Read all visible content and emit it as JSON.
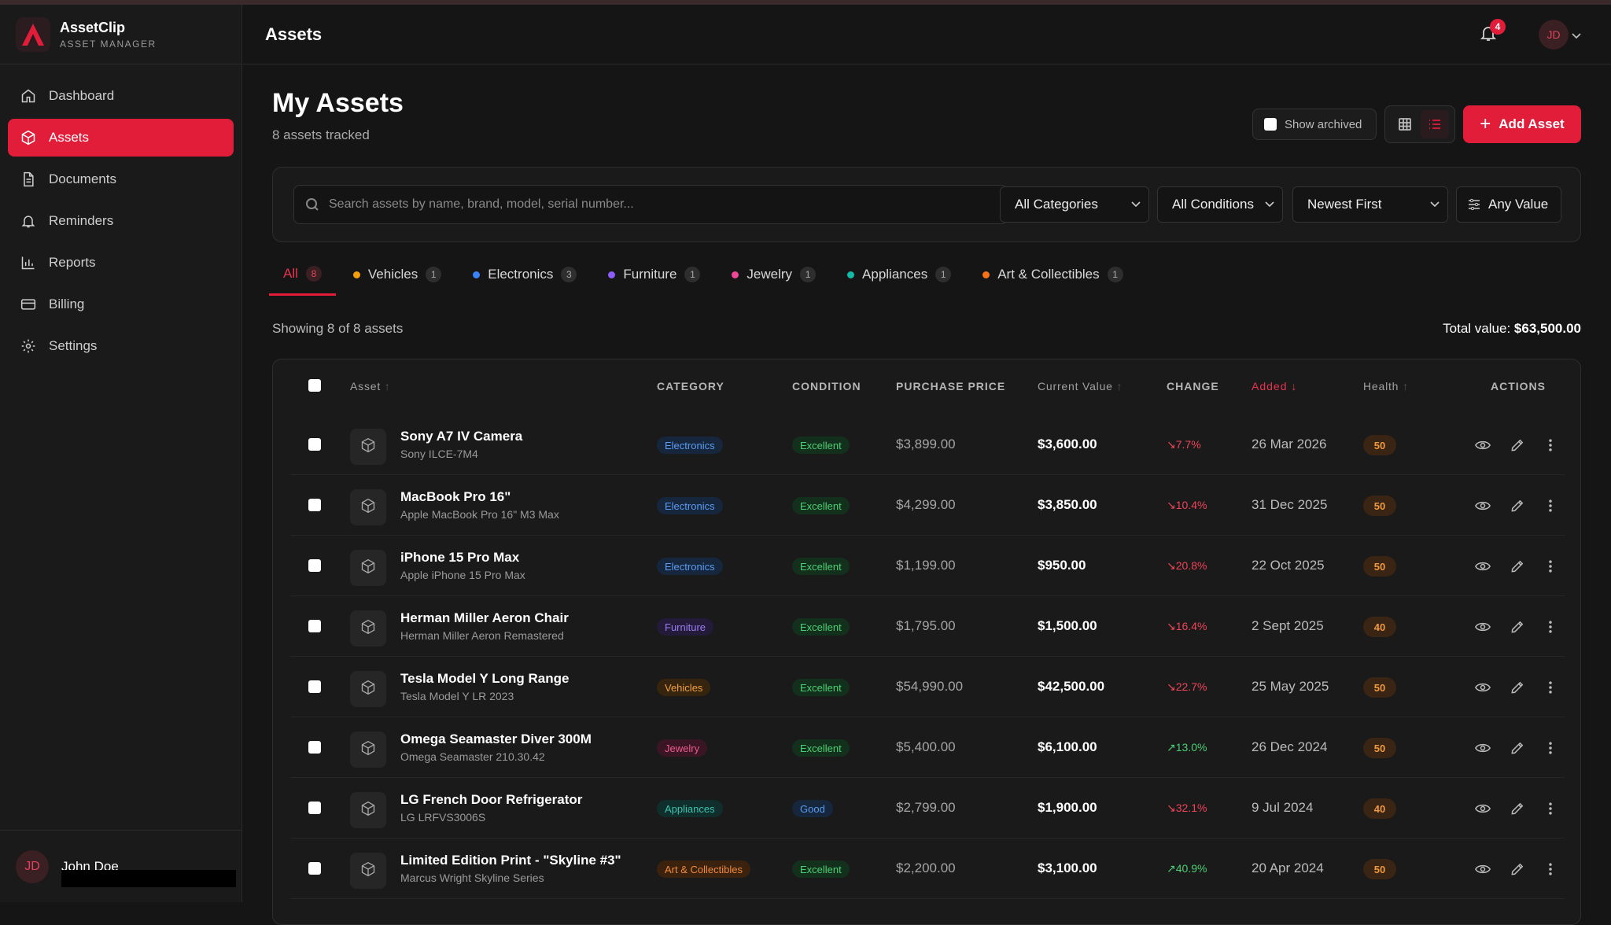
{
  "brand": {
    "name": "AssetClip",
    "subtitle": "ASSET MANAGER"
  },
  "colors": {
    "accent": "#e11d3a",
    "background": "#151515",
    "panel": "#1a1a1a"
  },
  "sidebar": {
    "items": [
      {
        "label": "Dashboard",
        "icon": "home-icon"
      },
      {
        "label": "Assets",
        "icon": "box-icon",
        "active": true
      },
      {
        "label": "Documents",
        "icon": "document-icon"
      },
      {
        "label": "Reminders",
        "icon": "bell-icon"
      },
      {
        "label": "Reports",
        "icon": "bar-chart-icon"
      },
      {
        "label": "Billing",
        "icon": "credit-card-icon"
      },
      {
        "label": "Settings",
        "icon": "gear-icon"
      }
    ],
    "user": {
      "initials": "JD",
      "name": "John Doe"
    }
  },
  "header": {
    "title": "Assets",
    "notification_count": "4",
    "avatar_initials": "JD"
  },
  "page": {
    "title": "My Assets",
    "subtitle": "8 assets tracked",
    "show_archived_label": "Show archived",
    "add_asset_label": "Add Asset"
  },
  "filters": {
    "search_placeholder": "Search assets by name, brand, model, serial number...",
    "category": "All Categories",
    "condition": "All Conditions",
    "sort": "Newest First",
    "value": "Any Value"
  },
  "tabs": [
    {
      "label": "All",
      "count": "8",
      "color": "",
      "active": true
    },
    {
      "label": "Vehicles",
      "count": "1",
      "color": "#f59e0b"
    },
    {
      "label": "Electronics",
      "count": "3",
      "color": "#3b82f6"
    },
    {
      "label": "Furniture",
      "count": "1",
      "color": "#8b5cf6"
    },
    {
      "label": "Jewelry",
      "count": "1",
      "color": "#ec4899"
    },
    {
      "label": "Appliances",
      "count": "1",
      "color": "#14b8a6"
    },
    {
      "label": "Art & Collectibles",
      "count": "1",
      "color": "#f97316"
    }
  ],
  "summary": {
    "showing": "Showing 8 of 8 assets",
    "total_label": "Total value:",
    "total_value": "$63,500.00"
  },
  "table": {
    "columns": [
      "Asset",
      "CATEGORY",
      "CONDITION",
      "PURCHASE PRICE",
      "Current Value",
      "CHANGE",
      "Added",
      "Health",
      "ACTIONS"
    ],
    "rows": [
      {
        "name": "Sony A7 IV Camera",
        "model": "Sony ILCE-7M4",
        "category": "Electronics",
        "condition": "Excellent",
        "purchase": "$3,899.00",
        "current": "$3,600.00",
        "change": "7.7%",
        "direction": "down",
        "added": "26 Mar 2026",
        "health": "50"
      },
      {
        "name": "MacBook Pro 16\"",
        "model": "Apple MacBook Pro 16\" M3 Max",
        "category": "Electronics",
        "condition": "Excellent",
        "purchase": "$4,299.00",
        "current": "$3,850.00",
        "change": "10.4%",
        "direction": "down",
        "added": "31 Dec 2025",
        "health": "50"
      },
      {
        "name": "iPhone 15 Pro Max",
        "model": "Apple iPhone 15 Pro Max",
        "category": "Electronics",
        "condition": "Excellent",
        "purchase": "$1,199.00",
        "current": "$950.00",
        "change": "20.8%",
        "direction": "down",
        "added": "22 Oct 2025",
        "health": "50"
      },
      {
        "name": "Herman Miller Aeron Chair",
        "model": "Herman Miller Aeron Remastered",
        "category": "Furniture",
        "condition": "Excellent",
        "purchase": "$1,795.00",
        "current": "$1,500.00",
        "change": "16.4%",
        "direction": "down",
        "added": "2 Sept 2025",
        "health": "40"
      },
      {
        "name": "Tesla Model Y Long Range",
        "model": "Tesla Model Y LR 2023",
        "category": "Vehicles",
        "condition": "Excellent",
        "purchase": "$54,990.00",
        "current": "$42,500.00",
        "change": "22.7%",
        "direction": "down",
        "added": "25 May 2025",
        "health": "50"
      },
      {
        "name": "Omega Seamaster Diver 300M",
        "model": "Omega Seamaster 210.30.42",
        "category": "Jewelry",
        "condition": "Excellent",
        "purchase": "$5,400.00",
        "current": "$6,100.00",
        "change": "13.0%",
        "direction": "up",
        "added": "26 Dec 2024",
        "health": "50"
      },
      {
        "name": "LG French Door Refrigerator",
        "model": "LG LRFVS3006S",
        "category": "Appliances",
        "condition": "Good",
        "purchase": "$2,799.00",
        "current": "$1,900.00",
        "change": "32.1%",
        "direction": "down",
        "added": "9 Jul 2024",
        "health": "40"
      },
      {
        "name": "Limited Edition Print - \"Skyline #3\"",
        "model": "Marcus Wright Skyline Series",
        "category": "Art & Collectibles",
        "condition": "Excellent",
        "purchase": "$2,200.00",
        "current": "$3,100.00",
        "change": "40.9%",
        "direction": "up",
        "added": "20 Apr 2024",
        "health": "50"
      }
    ]
  }
}
